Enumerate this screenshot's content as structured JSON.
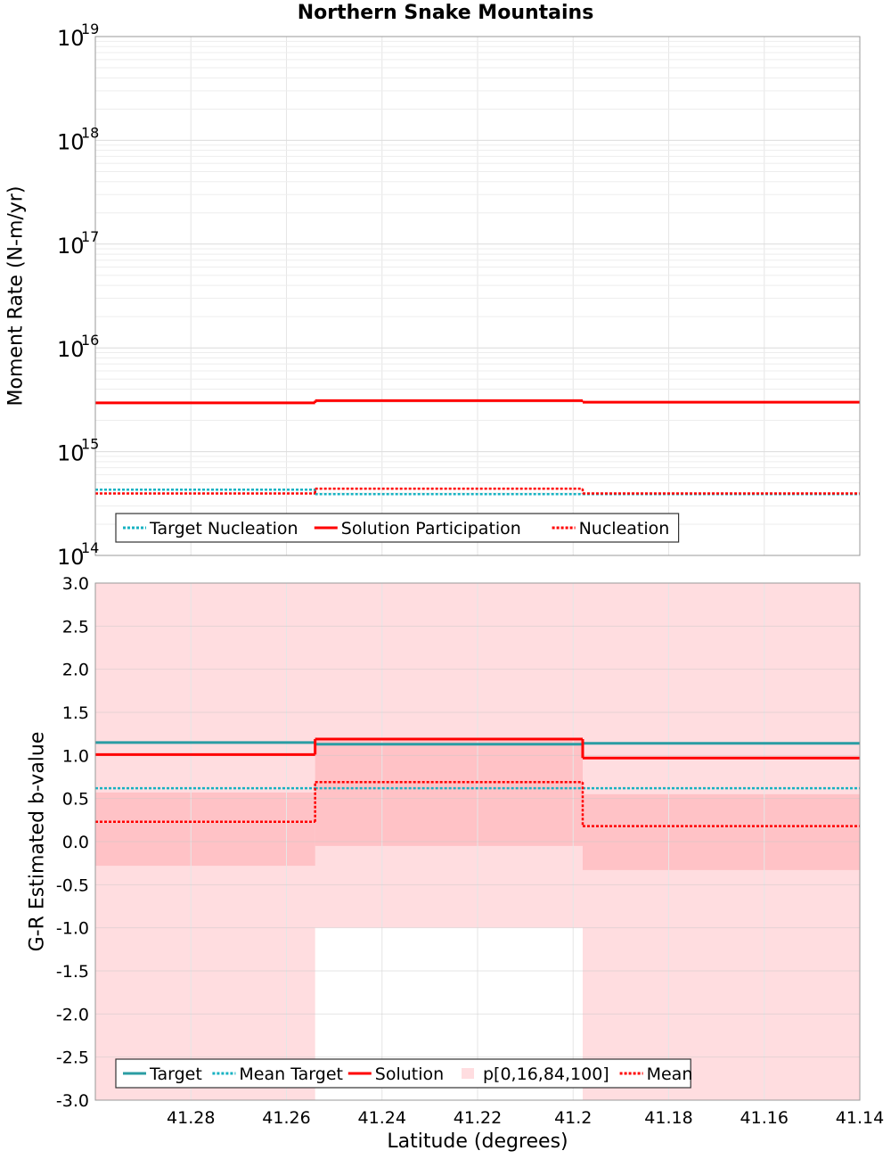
{
  "chart_data": {
    "title": "Northern Snake Mountains",
    "xlabel": "Latitude (degrees)",
    "x_reversed": true,
    "x_range": [
      41.3,
      41.14
    ],
    "x_ticks": [
      "41.28",
      "41.26",
      "41.24",
      "41.22",
      "41.2",
      "41.18",
      "41.16",
      "41.14"
    ],
    "sections": [
      {
        "from": 41.3,
        "to": 41.254
      },
      {
        "from": 41.254,
        "to": 41.198
      },
      {
        "from": 41.198,
        "to": 41.14
      }
    ],
    "colors": {
      "target": "#2a9da3",
      "red": "#ff0000",
      "band_outer": "#ffdde0",
      "band_inner": "#ffc2c6"
    },
    "charts": [
      {
        "type": "line",
        "ylabel": "Moment Rate (N-m/yr)",
        "yscale": "log",
        "ylim": [
          100000000000000.0,
          1e+19
        ],
        "y_ticks": [
          {
            "base": "10",
            "exp": "14"
          },
          {
            "base": "10",
            "exp": "15"
          },
          {
            "base": "10",
            "exp": "16"
          },
          {
            "base": "10",
            "exp": "17"
          },
          {
            "base": "10",
            "exp": "18"
          },
          {
            "base": "10",
            "exp": "19"
          }
        ],
        "grid": true,
        "legend_position": "bottom-left",
        "series": [
          {
            "name": "Target Nucleation",
            "style": "dotted",
            "color": "#17b2c2",
            "values": [
              430000000000000.0,
              390000000000000.0,
              390000000000000.0
            ]
          },
          {
            "name": "Solution Participation",
            "style": "solid",
            "color": "#ff0000",
            "values": [
              2950000000000000.0,
              3100000000000000.0,
              3000000000000000.0
            ]
          },
          {
            "name": "Nucleation",
            "style": "dotted",
            "color": "#ff0000",
            "values": [
              395000000000000.0,
              440000000000000.0,
              395000000000000.0
            ]
          }
        ]
      },
      {
        "type": "line",
        "ylabel": "G-R Estimated b-value",
        "ylim": [
          -3.0,
          3.0
        ],
        "y_ticks": [
          "-3.0",
          "-2.5",
          "-2.0",
          "-1.5",
          "-1.0",
          "-0.5",
          "0.0",
          "0.5",
          "1.0",
          "1.5",
          "2.0",
          "2.5",
          "3.0"
        ],
        "grid": true,
        "legend_position": "bottom-left",
        "band_name": "p[0,16,84,100]",
        "bands": {
          "p0": [
            -3.0,
            -3.0,
            -3.0
          ],
          "p16": [
            -0.28,
            -0.05,
            -0.33
          ],
          "p84": [
            0.57,
            1.17,
            0.55
          ],
          "p100": [
            3.0,
            3.0,
            3.0
          ],
          "p0_middle_gap_top": -1.0
        },
        "series": [
          {
            "name": "Target",
            "style": "solid",
            "color": "#2a9da3",
            "values": [
              1.15,
              1.13,
              1.14
            ]
          },
          {
            "name": "Mean Target",
            "style": "dotted",
            "color": "#17b2c2",
            "values": [
              0.62,
              0.62,
              0.62
            ]
          },
          {
            "name": "Solution",
            "style": "solid",
            "color": "#ff0000",
            "values": [
              1.01,
              1.19,
              0.97
            ]
          },
          {
            "name": "Mean",
            "style": "dotted",
            "color": "#ff0000",
            "values": [
              0.23,
              0.69,
              0.18
            ]
          }
        ]
      }
    ]
  }
}
